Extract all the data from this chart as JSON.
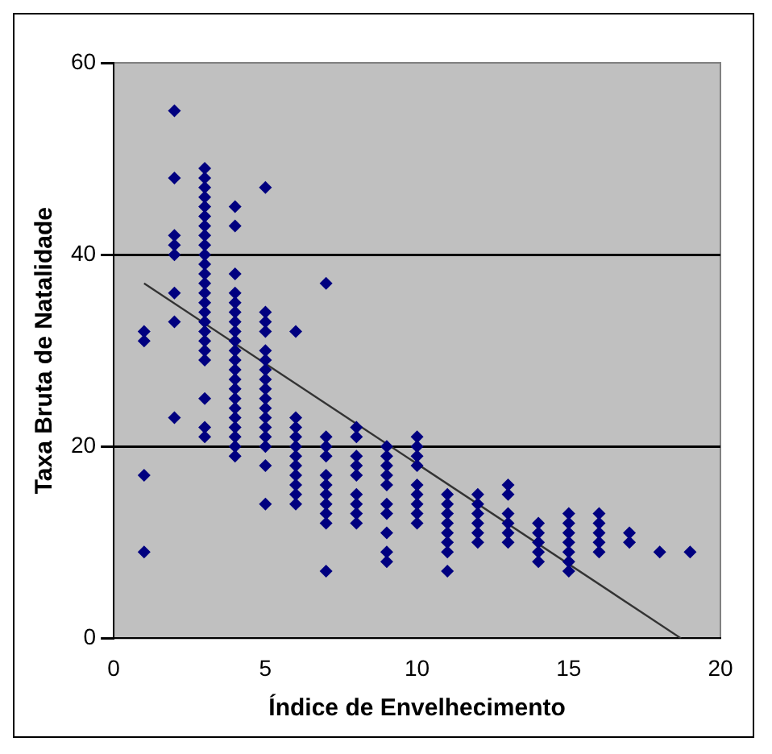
{
  "chart_data": {
    "type": "scatter",
    "xlabel": "Índice de Envelhecimento",
    "ylabel": "Taxa Bruta de Natalidade",
    "xlim": [
      0,
      20
    ],
    "xticks": [
      0,
      5,
      10,
      15,
      20
    ],
    "ylim": [
      0,
      60
    ],
    "yticks": [
      0,
      20,
      40,
      60
    ],
    "grid": "y",
    "legend": false,
    "marker": "diamond",
    "series": [
      {
        "type": "scatter",
        "color": "#000080",
        "x": [
          1,
          1,
          1,
          1,
          2,
          2,
          2,
          2,
          2,
          2,
          2,
          2,
          3,
          3,
          3,
          3,
          3,
          3,
          3,
          3,
          3,
          3,
          3,
          3,
          3,
          3,
          3,
          3,
          3,
          3,
          3,
          3,
          3,
          3,
          3,
          3,
          4,
          4,
          4,
          4,
          4,
          4,
          4,
          4,
          4,
          4,
          4,
          4,
          4,
          4,
          4,
          4,
          4,
          4,
          4,
          4,
          4,
          5,
          5,
          5,
          5,
          5,
          5,
          5,
          5,
          5,
          5,
          5,
          5,
          5,
          5,
          5,
          5,
          5,
          6,
          6,
          6,
          6,
          6,
          6,
          6,
          6,
          6,
          6,
          6,
          7,
          7,
          7,
          7,
          7,
          7,
          7,
          7,
          7,
          7,
          7,
          8,
          8,
          8,
          8,
          8,
          8,
          8,
          8,
          8,
          9,
          9,
          9,
          9,
          9,
          9,
          9,
          9,
          9,
          9,
          10,
          10,
          10,
          10,
          10,
          10,
          10,
          10,
          10,
          11,
          11,
          11,
          11,
          11,
          11,
          11,
          11,
          12,
          12,
          12,
          12,
          12,
          12,
          13,
          13,
          13,
          13,
          13,
          13,
          14,
          14,
          14,
          14,
          14,
          15,
          15,
          15,
          15,
          15,
          15,
          15,
          16,
          16,
          16,
          16,
          16,
          17,
          17,
          18,
          19
        ],
        "values": [
          32,
          31,
          17,
          9,
          55,
          48,
          42,
          41,
          40,
          36,
          33,
          23,
          49,
          48,
          47,
          46,
          45,
          44,
          43,
          42,
          41,
          40,
          39,
          38,
          37,
          36,
          35,
          34,
          33,
          32,
          31,
          30,
          29,
          25,
          22,
          21,
          45,
          43,
          38,
          36,
          35,
          34,
          33,
          32,
          31,
          30,
          29,
          28,
          27,
          26,
          25,
          24,
          23,
          22,
          21,
          20,
          19,
          47,
          34,
          33,
          32,
          30,
          29,
          28,
          27,
          26,
          25,
          24,
          23,
          22,
          21,
          20,
          18,
          14,
          32,
          23,
          22,
          21,
          20,
          19,
          18,
          17,
          16,
          15,
          14,
          37,
          21,
          20,
          19,
          17,
          16,
          15,
          14,
          13,
          12,
          7,
          22,
          21,
          19,
          18,
          17,
          15,
          14,
          13,
          12,
          20,
          19,
          18,
          17,
          16,
          14,
          13,
          11,
          9,
          8,
          21,
          20,
          19,
          18,
          16,
          15,
          14,
          13,
          12,
          15,
          14,
          13,
          12,
          11,
          10,
          9,
          7,
          15,
          14,
          13,
          12,
          11,
          10,
          16,
          15,
          13,
          12,
          11,
          10,
          12,
          11,
          10,
          9,
          8,
          13,
          12,
          11,
          10,
          9,
          8,
          7,
          13,
          12,
          11,
          10,
          9,
          11,
          10,
          9,
          9
        ]
      },
      {
        "type": "line",
        "color": "#333333",
        "marker": "none",
        "x": [
          1,
          18.7
        ],
        "values": [
          37,
          0
        ]
      }
    ]
  }
}
